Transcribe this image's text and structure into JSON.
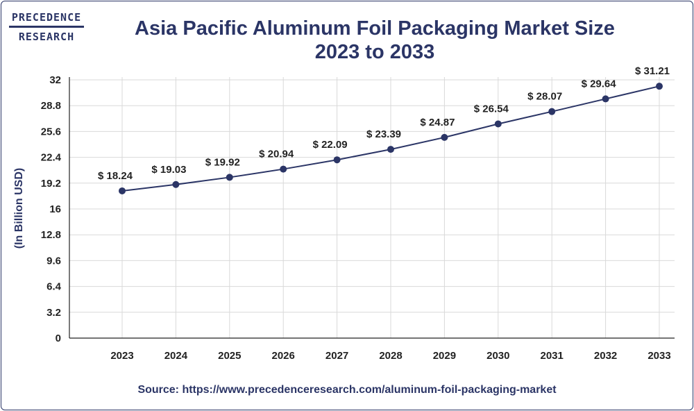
{
  "logo": {
    "line1": "PRECEDENCE",
    "line2": "RESEARCH"
  },
  "colors": {
    "navy": "#2b3566",
    "grid": "#d9d9d9",
    "axis": "#222222"
  },
  "chart_data": {
    "type": "line",
    "title_line1": "Asia Pacific Aluminum Foil Packaging Market Size",
    "title_line2": "2023 to 2033",
    "xlabel": "",
    "ylabel": "(In Billion USD)",
    "categories": [
      "2023",
      "2024",
      "2025",
      "2026",
      "2027",
      "2028",
      "2029",
      "2030",
      "2031",
      "2032",
      "2033"
    ],
    "series": [
      {
        "name": "Market Size",
        "values": [
          18.24,
          19.03,
          19.92,
          20.94,
          22.09,
          23.39,
          24.87,
          26.54,
          28.07,
          29.64,
          31.21
        ]
      }
    ],
    "data_labels": [
      "$ 18.24",
      "$ 19.03",
      "$ 19.92",
      "$ 20.94",
      "$ 22.09",
      "$ 23.39",
      "$ 24.87",
      "$ 26.54",
      "$ 28.07",
      "$ 29.64",
      "$ 31.21"
    ],
    "yticks": [
      "0",
      "3.2",
      "6.4",
      "9.6",
      "12.8",
      "16",
      "19.2",
      "22.4",
      "25.6",
      "28.8",
      "32"
    ],
    "ylim": [
      0,
      32
    ],
    "grid": true,
    "legend": "none"
  },
  "source": "Source: https://www.precedenceresearch.com/aluminum-foil-packaging-market"
}
